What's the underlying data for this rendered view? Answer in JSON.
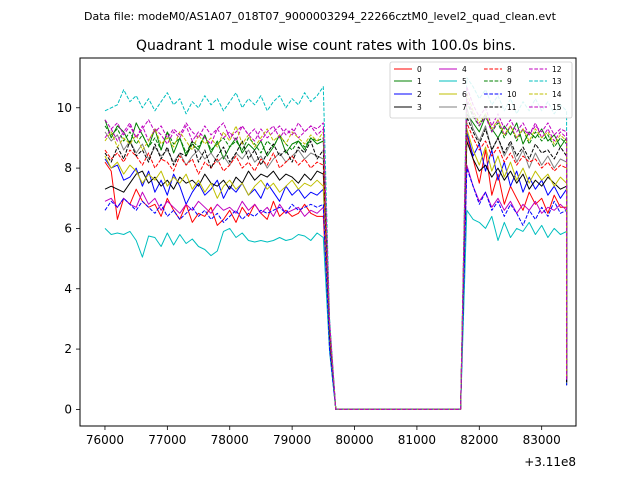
{
  "chart_data": {
    "type": "line",
    "suptitle": "Data file: modeM0/AS1A07_018T07_9000003294_22266cztM0_level2_quad_clean.evt",
    "title": "Quadrant 1 module wise count rates with 100.0s bins.",
    "xlabel": "",
    "ylabel": "",
    "x_offset_label": "+3.11e8",
    "xlim": [
      75600,
      83550
    ],
    "ylim": [
      -0.55,
      11.65
    ],
    "xticks": [
      76000,
      77000,
      78000,
      79000,
      80000,
      81000,
      82000,
      83000
    ],
    "xtick_labels": [
      "76000",
      "77000",
      "78000",
      "79000",
      "80000",
      "81000",
      "82000",
      "83000"
    ],
    "yticks": [
      0,
      2,
      4,
      6,
      8,
      10
    ],
    "ytick_labels": [
      "0",
      "2",
      "4",
      "6",
      "8",
      "10"
    ],
    "legend_position": "top-right",
    "segments": [
      {
        "x_start": 76000,
        "x_end": 79500,
        "step": 100
      },
      {
        "x_start": 79600,
        "x_end": 79700,
        "step": 100
      },
      {
        "x_start": 79700,
        "x_end": 81700,
        "step": 100,
        "flat_zero": true
      },
      {
        "x_start": 81700,
        "x_end": 83300,
        "step": 100
      },
      {
        "x_start": 83400,
        "x_end": 83400,
        "step": 100
      }
    ],
    "series": [
      {
        "name": "0",
        "color": "#ff0000",
        "dash": "solid",
        "seg1": [
          8.2,
          7.9,
          6.3,
          7.0,
          6.8,
          7.3,
          6.9,
          6.7,
          6.8,
          6.4,
          7.0,
          6.6,
          6.3,
          6.8,
          6.2,
          6.5,
          6.4,
          6.7,
          6.1,
          6.3,
          6.6,
          6.2,
          6.7,
          6.4,
          6.8,
          6.5,
          6.3,
          6.9,
          6.4,
          6.6,
          6.4,
          6.5,
          6.8,
          6.5,
          6.4,
          6.4
        ],
        "tail": [
          2.2,
          0.0
        ],
        "seg2": [
          9.1,
          8.3,
          7.5,
          8.6,
          7.1,
          7.8,
          6.8,
          7.4,
          7.0,
          6.6,
          7.2,
          6.8,
          7.0,
          6.5,
          7.1,
          6.7,
          6.7
        ],
        "end": 0.9
      },
      {
        "name": "1",
        "color": "#008000",
        "dash": "solid",
        "seg1": [
          9.6,
          9.0,
          9.4,
          9.2,
          8.8,
          9.5,
          9.1,
          8.7,
          9.3,
          8.6,
          9.2,
          8.5,
          9.0,
          8.4,
          8.8,
          8.6,
          9.1,
          8.5,
          8.9,
          8.3,
          8.7,
          9.0,
          8.5,
          8.8,
          8.6,
          8.9,
          8.4,
          8.7,
          9.1,
          8.5,
          8.8,
          8.9,
          8.6,
          9.0,
          8.8,
          8.9
        ],
        "tail": [
          2.7,
          0.0
        ],
        "seg2": [
          9.8,
          9.5,
          9.2,
          9.7,
          9.3,
          9.0,
          9.4,
          9.1,
          9.5,
          8.8,
          9.2,
          9.0,
          9.3,
          8.9,
          9.1,
          8.7,
          9.0
        ],
        "end": 1.0
      },
      {
        "name": "2",
        "color": "#0000ff",
        "dash": "solid",
        "seg1": [
          8.3,
          8.0,
          8.1,
          7.6,
          7.7,
          8.0,
          7.4,
          7.9,
          7.2,
          7.6,
          7.1,
          7.8,
          7.4,
          6.8,
          7.2,
          7.5,
          7.1,
          7.3,
          7.6,
          7.0,
          7.4,
          7.2,
          7.5,
          7.1,
          7.3,
          7.0,
          7.5,
          7.2,
          6.9,
          7.4,
          7.1,
          7.3,
          7.0,
          7.2,
          7.1,
          7.3
        ],
        "tail": [
          2.3,
          0.0
        ],
        "seg2": [
          9.2,
          8.4,
          8.8,
          7.9,
          8.6,
          7.6,
          8.2,
          7.4,
          7.9,
          7.2,
          7.7,
          7.3,
          7.6,
          7.1,
          7.4,
          7.0,
          7.3
        ],
        "end": 0.9
      },
      {
        "name": "3",
        "color": "#000000",
        "dash": "solid",
        "seg1": [
          7.3,
          7.4,
          7.3,
          7.2,
          7.5,
          7.8,
          7.9,
          7.5,
          7.7,
          7.4,
          7.6,
          7.3,
          7.7,
          7.5,
          7.6,
          7.4,
          7.8,
          7.5,
          7.4,
          7.6,
          7.3,
          7.7,
          7.5,
          7.9,
          7.6,
          7.8,
          7.7,
          7.9,
          7.6,
          7.8,
          7.7,
          7.5,
          7.8,
          7.6,
          7.9,
          7.8
        ],
        "tail": [
          2.4,
          0.0
        ],
        "seg2": [
          8.9,
          8.3,
          7.9,
          8.1,
          7.7,
          8.0,
          7.6,
          7.9,
          7.5,
          7.8,
          7.3,
          7.6,
          7.4,
          7.7,
          7.5,
          7.3,
          7.4
        ],
        "end": 0.8
      },
      {
        "name": "4",
        "color": "#bf00bf",
        "dash": "solid",
        "seg1": [
          6.9,
          7.0,
          6.7,
          7.0,
          6.8,
          6.7,
          7.2,
          6.8,
          7.0,
          6.6,
          6.9,
          6.7,
          6.5,
          6.8,
          6.6,
          6.9,
          6.7,
          6.5,
          6.8,
          6.6,
          6.7,
          6.5,
          6.9,
          6.6,
          6.8,
          6.5,
          6.7,
          6.4,
          6.8,
          6.5,
          6.6,
          6.7,
          6.4,
          6.6,
          6.5,
          6.7
        ],
        "tail": [
          2.0,
          0.0
        ],
        "seg2": [
          8.1,
          7.4,
          6.9,
          7.2,
          6.7,
          7.0,
          6.6,
          6.9,
          6.5,
          6.8,
          6.6,
          6.9,
          6.5,
          6.7,
          6.6,
          6.8,
          6.6
        ],
        "end": 0.8
      },
      {
        "name": "5",
        "color": "#00bfbf",
        "dash": "solid",
        "seg1": [
          6.0,
          5.8,
          5.85,
          5.8,
          5.9,
          5.6,
          5.05,
          5.75,
          5.7,
          5.4,
          5.85,
          5.45,
          5.8,
          5.5,
          5.65,
          5.4,
          5.3,
          5.1,
          5.25,
          5.9,
          6.0,
          5.7,
          5.85,
          5.6,
          5.55,
          5.6,
          5.55,
          5.6,
          5.7,
          5.6,
          5.65,
          5.8,
          5.75,
          5.6,
          5.85,
          5.7
        ],
        "tail": [
          1.9,
          0.0
        ],
        "seg2": [
          6.6,
          6.3,
          6.2,
          6.0,
          6.4,
          5.6,
          6.2,
          5.7,
          6.0,
          5.9,
          6.2,
          5.8,
          6.1,
          5.7,
          6.0,
          5.8,
          5.9
        ],
        "end": 0.8
      },
      {
        "name": "6",
        "color": "#bfbf00",
        "dash": "solid",
        "seg1": [
          8.4,
          8.0,
          8.2,
          7.8,
          8.1,
          7.9,
          7.5,
          7.8,
          7.6,
          7.9,
          7.4,
          7.7,
          7.5,
          7.8,
          7.3,
          7.6,
          7.2,
          7.5,
          7.0,
          7.4,
          7.6,
          7.3,
          7.5,
          7.1,
          7.4,
          7.6,
          7.3,
          7.5,
          7.2,
          7.4,
          7.6,
          7.3,
          7.5,
          7.4,
          7.6,
          7.4
        ],
        "tail": [
          2.4,
          0.0
        ],
        "seg2": [
          9.3,
          8.6,
          8.1,
          8.7,
          7.9,
          8.4,
          7.7,
          8.2,
          7.6,
          8.0,
          7.5,
          7.9,
          7.6,
          7.8,
          7.4,
          7.7,
          7.5
        ],
        "end": 0.9
      },
      {
        "name": "7",
        "color": "#808080",
        "dash": "solid",
        "seg1": [
          9.2,
          8.9,
          9.1,
          8.6,
          8.9,
          8.5,
          8.8,
          8.3,
          8.7,
          8.4,
          8.6,
          8.2,
          8.5,
          8.1,
          8.4,
          8.6,
          8.3,
          8.5,
          8.2,
          8.4,
          8.1,
          8.5,
          8.3,
          8.6,
          8.2,
          8.4,
          8.0,
          8.3,
          8.5,
          8.2,
          8.4,
          8.6,
          8.3,
          8.5,
          8.4,
          8.3
        ],
        "tail": [
          2.5,
          0.0
        ],
        "seg2": [
          10.0,
          9.3,
          8.9,
          9.4,
          8.6,
          9.0,
          8.4,
          8.8,
          8.2,
          8.6,
          8.0,
          8.5,
          8.1,
          8.4,
          8.0,
          8.3,
          8.2
        ],
        "end": 0.9
      },
      {
        "name": "8",
        "color": "#ff0000",
        "dash": "dashed",
        "seg1": [
          8.6,
          8.3,
          8.5,
          8.2,
          8.6,
          8.4,
          8.1,
          8.5,
          8.0,
          8.3,
          8.2,
          7.9,
          8.4,
          8.1,
          8.3,
          7.8,
          8.2,
          8.0,
          8.3,
          7.9,
          8.1,
          8.4,
          8.0,
          8.2,
          7.9,
          8.3,
          8.1,
          8.5,
          8.0,
          8.2,
          8.4,
          8.1,
          8.3,
          8.0,
          8.2,
          8.1
        ],
        "tail": [
          2.4,
          0.0
        ],
        "seg2": [
          9.5,
          9.0,
          8.6,
          8.9,
          8.4,
          8.7,
          8.2,
          8.5,
          8.1,
          8.4,
          8.2,
          8.3,
          8.0,
          8.2,
          7.9,
          8.1,
          8.0
        ],
        "end": 0.9
      },
      {
        "name": "9",
        "color": "#008000",
        "dash": "dashed",
        "seg1": [
          9.4,
          9.1,
          9.3,
          8.9,
          9.2,
          8.8,
          9.1,
          8.7,
          9.0,
          8.6,
          9.2,
          8.8,
          9.0,
          8.5,
          8.9,
          8.7,
          9.1,
          8.6,
          8.8,
          9.0,
          8.7,
          8.9,
          8.6,
          9.0,
          8.8,
          8.5,
          8.9,
          8.7,
          9.1,
          8.8,
          8.6,
          8.9,
          8.7,
          9.0,
          8.9,
          9.0
        ],
        "tail": [
          2.7,
          0.0
        ],
        "seg2": [
          10.2,
          9.7,
          9.4,
          9.8,
          9.2,
          9.5,
          9.0,
          9.4,
          8.9,
          9.3,
          8.8,
          9.2,
          8.9,
          9.1,
          8.7,
          9.0,
          8.8
        ],
        "end": 1.0
      },
      {
        "name": "10",
        "color": "#0000ff",
        "dash": "dashed",
        "seg1": [
          6.6,
          6.9,
          6.7,
          7.0,
          6.8,
          6.6,
          6.9,
          6.7,
          6.5,
          6.8,
          6.4,
          6.6,
          6.3,
          6.5,
          6.7,
          6.4,
          6.6,
          6.3,
          6.5,
          6.2,
          6.4,
          6.6,
          6.3,
          6.5,
          6.4,
          6.6,
          6.5,
          6.6,
          6.7,
          6.5,
          6.8,
          6.6,
          6.7,
          6.8,
          6.7,
          6.8
        ],
        "tail": [
          2.0,
          0.0
        ],
        "seg2": [
          8.0,
          7.4,
          6.8,
          7.2,
          6.6,
          6.9,
          6.4,
          6.8,
          6.5,
          6.1,
          6.6,
          6.3,
          6.7,
          6.4,
          6.9,
          6.5,
          6.6
        ],
        "end": 0.8
      },
      {
        "name": "11",
        "color": "#000000",
        "dash": "dashed",
        "seg1": [
          8.5,
          8.2,
          8.7,
          8.3,
          8.9,
          8.4,
          8.6,
          8.2,
          8.8,
          8.3,
          8.7,
          8.1,
          8.5,
          8.4,
          8.9,
          8.2,
          8.6,
          8.0,
          8.4,
          8.7,
          8.2,
          8.5,
          8.9,
          8.3,
          8.6,
          8.1,
          8.5,
          8.8,
          8.4,
          8.6,
          8.2,
          8.7,
          8.5,
          8.9,
          8.3,
          8.6
        ],
        "tail": [
          2.6,
          0.0
        ],
        "seg2": [
          9.7,
          9.2,
          8.8,
          9.3,
          8.6,
          9.0,
          8.5,
          8.9,
          8.4,
          8.7,
          8.3,
          8.8,
          8.5,
          8.6,
          8.3,
          8.7,
          8.4
        ],
        "end": 0.9
      },
      {
        "name": "12",
        "color": "#bf00bf",
        "dash": "dashed",
        "seg1": [
          9.0,
          9.3,
          8.9,
          9.2,
          9.5,
          9.0,
          9.4,
          8.9,
          9.3,
          9.1,
          8.8,
          9.2,
          9.0,
          9.4,
          8.9,
          9.2,
          9.0,
          8.8,
          9.3,
          9.0,
          9.2,
          8.9,
          9.4,
          9.1,
          8.9,
          9.3,
          9.0,
          9.2,
          9.4,
          9.1,
          9.3,
          9.0,
          9.2,
          9.4,
          9.1,
          9.3
        ],
        "tail": [
          2.8,
          0.0
        ],
        "seg2": [
          10.3,
          9.8,
          9.4,
          9.7,
          9.2,
          9.6,
          9.1,
          9.4,
          9.0,
          9.3,
          9.1,
          9.5,
          9.0,
          9.3,
          8.9,
          9.2,
          9.0
        ],
        "end": 1.0
      },
      {
        "name": "13",
        "color": "#00bfbf",
        "dash": "dashed",
        "seg1": [
          9.9,
          10.0,
          10.1,
          10.6,
          10.2,
          10.4,
          10.0,
          10.3,
          9.9,
          10.2,
          10.5,
          10.1,
          10.3,
          9.8,
          10.2,
          10.0,
          10.4,
          10.1,
          10.3,
          9.9,
          10.2,
          10.5,
          10.0,
          10.3,
          10.1,
          10.4,
          9.9,
          10.2,
          10.4,
          10.0,
          10.3,
          10.1,
          10.5,
          10.2,
          10.4,
          10.7
        ],
        "tail": [
          3.0,
          0.0
        ],
        "seg2": [
          11.0,
          10.7,
          10.3,
          10.6,
          10.1,
          10.4,
          9.9,
          10.3,
          9.8,
          10.2,
          9.9,
          10.3,
          9.9,
          10.2,
          9.8,
          10.1,
          9.9
        ],
        "end": 1.1
      },
      {
        "name": "14",
        "color": "#bfbf00",
        "dash": "dashed",
        "seg1": [
          8.9,
          9.2,
          8.7,
          9.0,
          8.8,
          9.1,
          8.6,
          8.9,
          9.3,
          8.8,
          9.0,
          8.7,
          9.2,
          8.9,
          8.6,
          9.1,
          8.8,
          9.0,
          8.7,
          9.2,
          8.9,
          9.4,
          8.8,
          9.1,
          8.7,
          9.0,
          9.3,
          8.9,
          9.1,
          8.8,
          9.2,
          9.0,
          8.8,
          9.1,
          8.9,
          9.2
        ],
        "tail": [
          2.8,
          0.0
        ],
        "seg2": [
          10.5,
          9.9,
          9.5,
          9.8,
          9.3,
          9.6,
          9.1,
          9.4,
          9.0,
          9.3,
          8.9,
          9.3,
          9.0,
          9.2,
          8.8,
          9.1,
          8.9
        ],
        "end": 1.0
      },
      {
        "name": "15",
        "color": "#bf00bf",
        "dash": "dashed",
        "seg1": [
          9.6,
          9.3,
          9.5,
          9.1,
          9.4,
          9.0,
          9.3,
          9.6,
          9.2,
          9.4,
          9.0,
          9.3,
          9.1,
          9.5,
          9.2,
          9.0,
          9.4,
          9.1,
          9.3,
          9.5,
          9.0,
          9.2,
          9.4,
          9.1,
          9.3,
          8.9,
          9.2,
          9.4,
          9.0,
          9.3,
          9.1,
          9.5,
          9.2,
          9.4,
          9.3,
          9.5
        ],
        "tail": [
          2.9,
          0.0
        ],
        "seg2": [
          10.7,
          10.1,
          9.7,
          10.0,
          9.4,
          9.8,
          9.3,
          9.6,
          9.2,
          9.5,
          9.1,
          9.4,
          9.2,
          9.5,
          9.1,
          9.3,
          9.2
        ],
        "end": 1.0
      }
    ]
  }
}
